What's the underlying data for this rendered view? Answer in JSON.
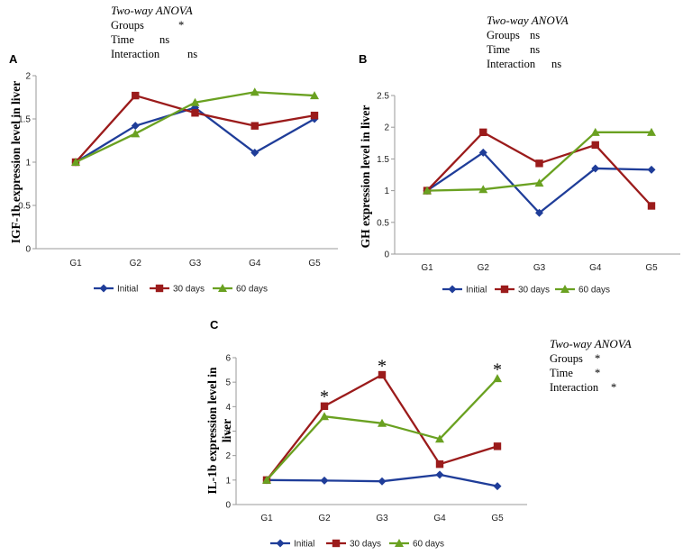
{
  "colors": {
    "initial": "#1f3d99",
    "d30": "#9b1b1b",
    "d60": "#6aa121",
    "axis": "#9a9a9a"
  },
  "chart_data": [
    {
      "id": "A",
      "type": "line",
      "panel_label": "A",
      "ylabel": "IGF-1b expression level in liver",
      "categories": [
        "G1",
        "G2",
        "G3",
        "G4",
        "G5"
      ],
      "yticks": [
        "0",
        "0.5",
        "1",
        "1.5",
        "2"
      ],
      "ylim": [
        0,
        2
      ],
      "series": [
        {
          "name": "Initial",
          "values": [
            1.0,
            1.42,
            1.63,
            1.11,
            1.5
          ]
        },
        {
          "name": "30 days",
          "values": [
            1.0,
            1.77,
            1.57,
            1.42,
            1.54
          ]
        },
        {
          "name": "60 days",
          "values": [
            1.0,
            1.33,
            1.69,
            1.81,
            1.77
          ]
        }
      ],
      "significance": [],
      "anova": {
        "title": "Two-way ANOVA",
        "rows": [
          {
            "label": "Groups",
            "value": "*"
          },
          {
            "label": "Time",
            "value": "ns"
          },
          {
            "label": "Interaction",
            "value": "ns"
          }
        ]
      }
    },
    {
      "id": "B",
      "type": "line",
      "panel_label": "B",
      "ylabel": "GH expression level in liver",
      "categories": [
        "G1",
        "G2",
        "G3",
        "G4",
        "G5"
      ],
      "yticks": [
        "0",
        "0.5",
        "1",
        "1.5",
        "2",
        "2.5"
      ],
      "ylim": [
        0,
        2.5
      ],
      "series": [
        {
          "name": "Initial",
          "values": [
            1.0,
            1.6,
            0.65,
            1.35,
            1.33
          ]
        },
        {
          "name": "30 days",
          "values": [
            1.0,
            1.92,
            1.43,
            1.72,
            0.76
          ]
        },
        {
          "name": "60 days",
          "values": [
            1.0,
            1.02,
            1.12,
            1.92,
            1.92
          ]
        }
      ],
      "significance": [],
      "anova": {
        "title": "Two-way ANOVA",
        "rows": [
          {
            "label": "Groups",
            "value": "ns"
          },
          {
            "label": "Time",
            "value": "ns"
          },
          {
            "label": "Interaction",
            "value": "ns"
          }
        ]
      }
    },
    {
      "id": "C",
      "type": "line",
      "panel_label": "C",
      "ylabel_lines": [
        "IL-1b expression level in",
        "liver"
      ],
      "categories": [
        "G1",
        "G2",
        "G3",
        "G4",
        "G5"
      ],
      "yticks": [
        "0",
        "1",
        "2",
        "3",
        "4",
        "5",
        "6"
      ],
      "ylim": [
        0,
        6
      ],
      "series": [
        {
          "name": "Initial",
          "values": [
            1.0,
            0.98,
            0.95,
            1.22,
            0.75
          ]
        },
        {
          "name": "30 days",
          "values": [
            1.0,
            4.02,
            5.3,
            1.65,
            2.38
          ]
        },
        {
          "name": "60 days",
          "values": [
            1.0,
            3.6,
            3.32,
            2.68,
            5.15
          ]
        }
      ],
      "significance": [
        {
          "category_index": 1,
          "value": 4.55,
          "label": "*"
        },
        {
          "category_index": 2,
          "value": 5.8,
          "label": "*"
        },
        {
          "category_index": 4,
          "value": 5.65,
          "label": "*"
        }
      ],
      "anova": {
        "title": "Two-way ANOVA",
        "rows": [
          {
            "label": "Groups",
            "value": "*"
          },
          {
            "label": "Time",
            "value": "*"
          },
          {
            "label": "Interaction",
            "value": "*"
          }
        ]
      }
    }
  ]
}
